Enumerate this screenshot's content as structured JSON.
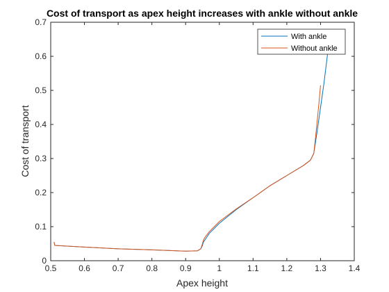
{
  "chart_data": {
    "type": "line",
    "title": "Cost of transport as apex height increases with ankle without ankle",
    "xlabel": "Apex height",
    "ylabel": "Cost of transport",
    "xlim": [
      0.5,
      1.4
    ],
    "ylim": [
      0,
      0.7
    ],
    "xticks": [
      "0.5",
      "0.6",
      "0.7",
      "0.8",
      "0.9",
      "1",
      "1.1",
      "1.2",
      "1.3",
      "1.4"
    ],
    "yticks": [
      "0",
      "0.1",
      "0.2",
      "0.3",
      "0.4",
      "0.5",
      "0.6",
      "0.7"
    ],
    "grid": false,
    "legend_position": "top-right",
    "series": [
      {
        "name": "With ankle",
        "color": "#0072BD",
        "x": [
          0.51,
          0.512,
          0.6,
          0.7,
          0.8,
          0.9,
          0.935,
          0.945,
          0.95,
          0.952,
          0.955,
          0.96,
          0.97,
          1.0,
          1.05,
          1.1,
          1.15,
          1.2,
          1.25,
          1.27,
          1.28,
          1.29,
          1.3,
          1.31,
          1.32,
          1.325
        ],
        "y": [
          0.055,
          0.045,
          0.04,
          0.035,
          0.032,
          0.028,
          0.029,
          0.035,
          0.045,
          0.053,
          0.058,
          0.065,
          0.08,
          0.11,
          0.15,
          0.185,
          0.22,
          0.25,
          0.28,
          0.295,
          0.315,
          0.38,
          0.45,
          0.52,
          0.6,
          0.65
        ]
      },
      {
        "name": "Without ankle",
        "color": "#D95319",
        "x": [
          0.51,
          0.512,
          0.6,
          0.7,
          0.8,
          0.9,
          0.935,
          0.945,
          0.95,
          0.952,
          0.955,
          0.96,
          0.97,
          1.0,
          1.05,
          1.1,
          1.15,
          1.2,
          1.25,
          1.27,
          1.28,
          1.285,
          1.29,
          1.295,
          1.3
        ],
        "y": [
          0.055,
          0.045,
          0.04,
          0.035,
          0.032,
          0.028,
          0.029,
          0.035,
          0.05,
          0.058,
          0.065,
          0.072,
          0.085,
          0.115,
          0.152,
          0.185,
          0.22,
          0.25,
          0.28,
          0.295,
          0.315,
          0.36,
          0.41,
          0.46,
          0.515
        ]
      }
    ]
  }
}
